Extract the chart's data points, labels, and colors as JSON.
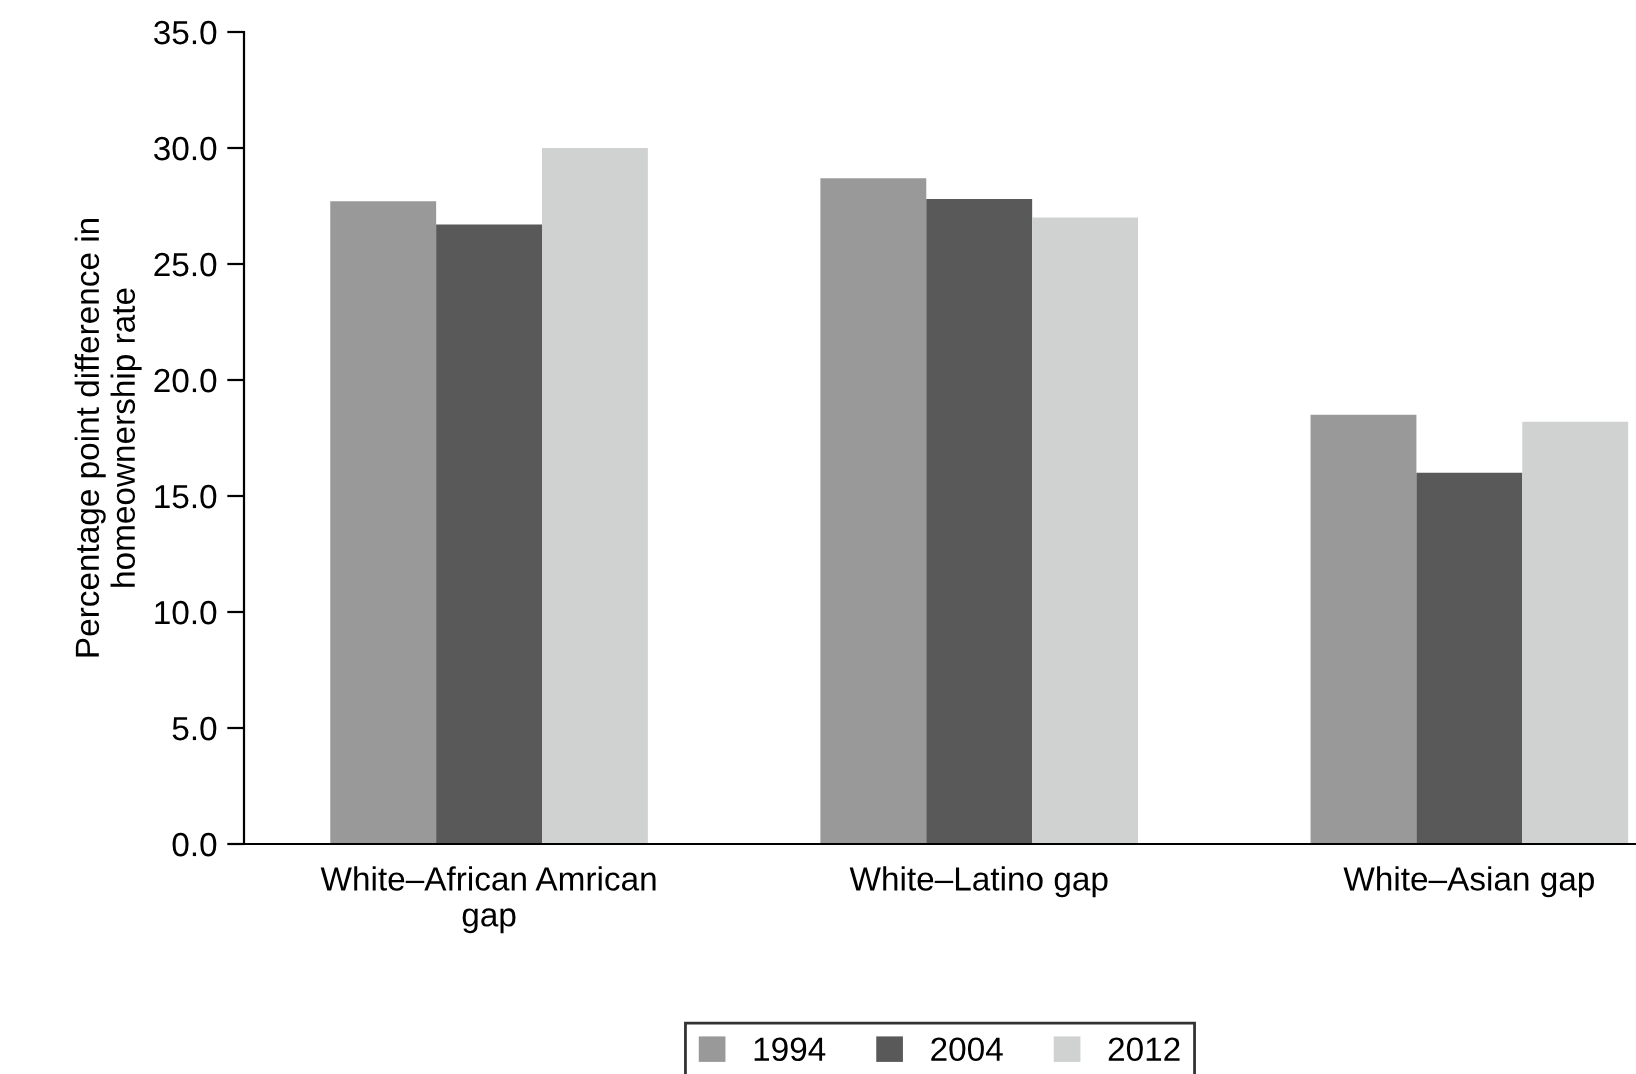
{
  "chart_data": {
    "type": "bar",
    "ylabel": "Percentage point difference in\nhomeownership rate",
    "categories": [
      "White–African Amrican\ngap",
      "White–Latino gap",
      "White–Asian gap"
    ],
    "series": [
      {
        "name": "1994",
        "color": "#999999",
        "values": [
          27.7,
          28.7,
          18.5
        ]
      },
      {
        "name": "2004",
        "color": "#595959",
        "values": [
          26.7,
          27.8,
          16.0
        ]
      },
      {
        "name": "2012",
        "color": "#d0d1d1",
        "values": [
          30.0,
          27.0,
          18.2
        ]
      }
    ],
    "ylim": [
      0,
      35
    ],
    "yticks": [
      {
        "value": 0,
        "label": "0.0"
      },
      {
        "value": 5,
        "label": "5.0"
      },
      {
        "value": 10,
        "label": "10.0"
      },
      {
        "value": 15,
        "label": "15.0"
      },
      {
        "value": 20,
        "label": "20.0"
      },
      {
        "value": 25,
        "label": "25.0"
      },
      {
        "value": 30,
        "label": "30.0"
      },
      {
        "value": 35,
        "label": "35.0"
      }
    ],
    "grid": false,
    "legend": "bottom"
  }
}
